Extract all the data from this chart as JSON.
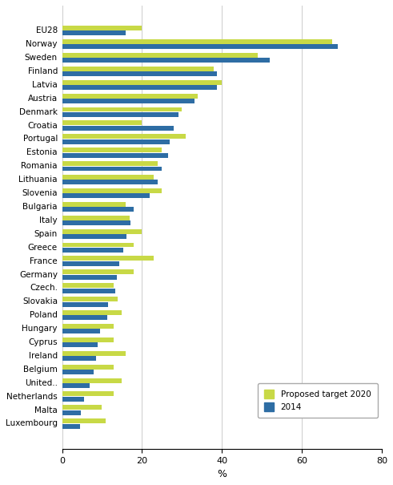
{
  "countries": [
    "EU28",
    "Norway",
    "Sweden",
    "Finland",
    "Latvia",
    "Austria",
    "Denmark",
    "Croatia",
    "Portugal",
    "Estonia",
    "Romania",
    "Lithuania",
    "Slovenia",
    "Bulgaria",
    "Italy",
    "Spain",
    "Greece",
    "France",
    "Germany",
    "Czech.",
    "Slovakia",
    "Poland",
    "Hungary",
    "Cyprus",
    "Ireland",
    "Belgium",
    "United..",
    "Netherlands",
    "Malta",
    "Luxembourg"
  ],
  "target_2020": [
    20,
    67.5,
    49,
    38,
    40,
    34,
    30,
    20,
    31,
    25,
    24,
    23,
    25,
    16,
    17,
    20,
    18,
    23,
    18,
    13,
    14,
    15,
    13,
    13,
    16,
    13,
    15,
    13,
    10,
    11
  ],
  "val_2014": [
    16,
    69,
    52,
    38.7,
    38.7,
    33.1,
    29.2,
    27.9,
    27,
    26.5,
    24.9,
    23.9,
    21.9,
    18.0,
    17.1,
    16.2,
    15.3,
    14.3,
    13.8,
    13.4,
    11.6,
    11.3,
    9.5,
    9.0,
    8.6,
    8.0,
    7.0,
    5.5,
    4.7,
    4.5
  ],
  "color_target": "#c8d946",
  "color_2014": "#2e6da4",
  "xlabel": "%",
  "xlim": [
    0,
    80
  ],
  "xticks": [
    0,
    20,
    40,
    60,
    80
  ],
  "legend_target": "Proposed target 2020",
  "legend_2014": "2014",
  "bar_height": 0.35,
  "bar_gap": 0.03
}
